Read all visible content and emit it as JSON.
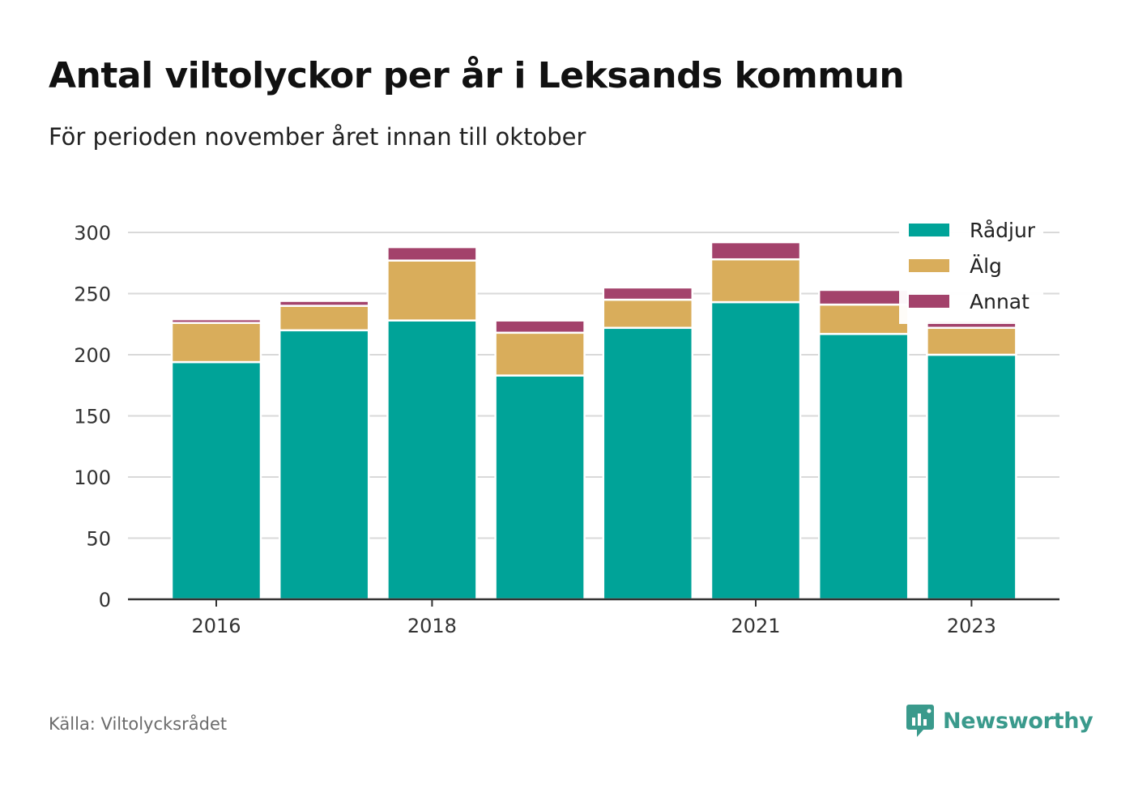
{
  "title": "Antal viltolyckor per år i Leksands kommun",
  "subtitle": "För perioden november året innan till oktober",
  "source": "Källa: Viltolycksrådet",
  "logo": {
    "name": "Newsworthy"
  },
  "colors": {
    "Rådjur": "#00a398",
    "Älg": "#d9ad5b",
    "Annat": "#a3426b",
    "grid": "#d9d9d9",
    "axis": "#333333"
  },
  "chart_data": {
    "type": "bar",
    "stacked": true,
    "categories": [
      "2016",
      "2017",
      "2018",
      "2019",
      "2020",
      "2021",
      "2022",
      "2023"
    ],
    "series": [
      {
        "name": "Rådjur",
        "values": [
          194,
          220,
          228,
          183,
          222,
          243,
          217,
          200
        ]
      },
      {
        "name": "Älg",
        "values": [
          32,
          20,
          49,
          35,
          23,
          35,
          24,
          22
        ]
      },
      {
        "name": "Annat",
        "values": [
          3,
          4,
          11,
          10,
          10,
          14,
          12,
          6
        ]
      }
    ],
    "x_tick_labels": [
      "2016",
      "2018",
      "2021",
      "2023"
    ],
    "y_ticks": [
      0,
      50,
      100,
      150,
      200,
      250,
      300
    ],
    "ylim": [
      0,
      300
    ],
    "grid": true,
    "legend_position": "top-right",
    "xlabel": "",
    "ylabel": ""
  }
}
